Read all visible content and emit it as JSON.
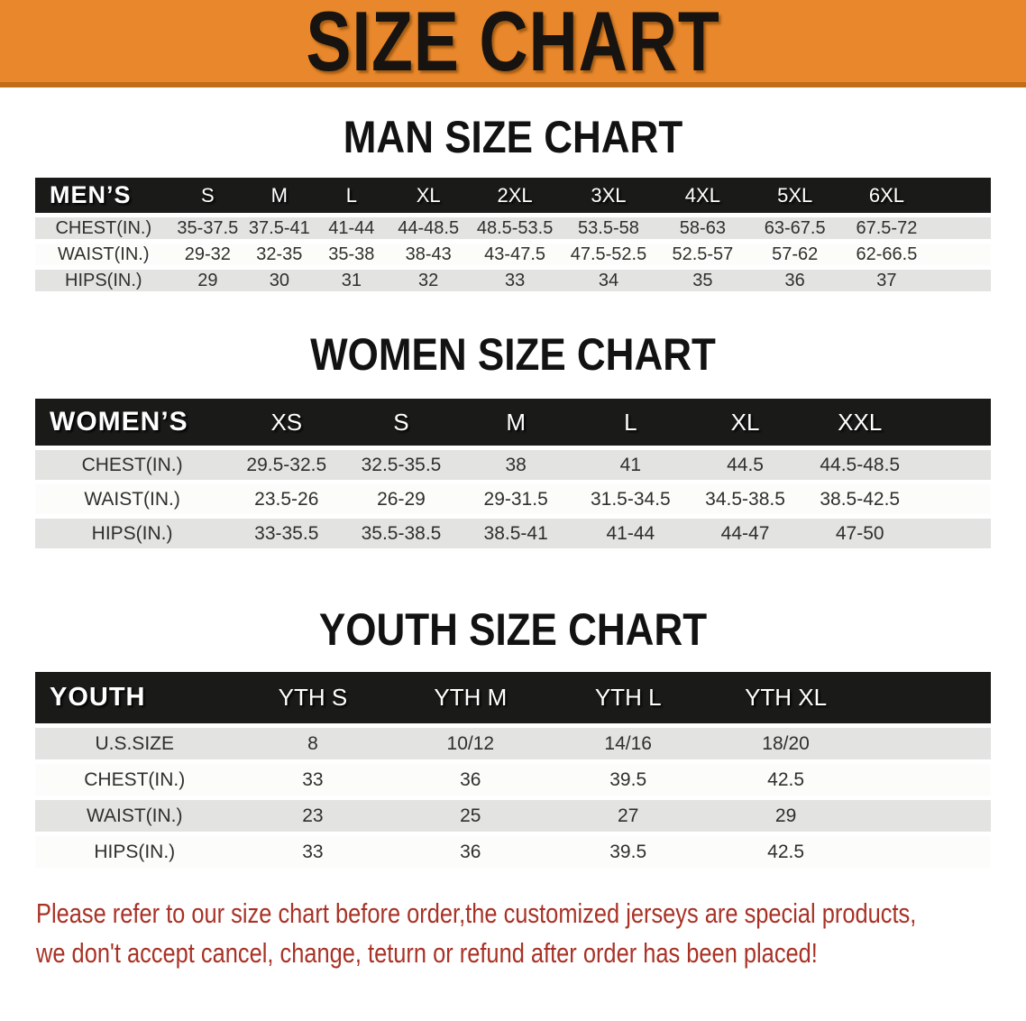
{
  "banner": {
    "title": "SIZE CHART"
  },
  "sections": [
    {
      "id": "men",
      "heading": "MAN SIZE CHART",
      "table": {
        "header": [
          "MEN’S",
          "S",
          "M",
          "L",
          "XL",
          "2XL",
          "3XL",
          "4XL",
          "5XL",
          "6XL"
        ],
        "rows": [
          {
            "label": "CHEST(IN.)",
            "values": [
              "35-37.5",
              "37.5-41",
              "41-44",
              "44-48.5",
              "48.5-53.5",
              "53.5-58",
              "58-63",
              "63-67.5",
              "67.5-72"
            ]
          },
          {
            "label": "WAIST(IN.)",
            "values": [
              "29-32",
              "32-35",
              "35-38",
              "38-43",
              "43-47.5",
              "47.5-52.5",
              "52.5-57",
              "57-62",
              "62-66.5"
            ]
          },
          {
            "label": "HIPS(IN.)",
            "values": [
              "29",
              "30",
              "31",
              "32",
              "33",
              "34",
              "35",
              "36",
              "37"
            ]
          }
        ]
      }
    },
    {
      "id": "women",
      "heading": "WOMEN SIZE CHART",
      "table": {
        "header": [
          "WOMEN’S",
          "XS",
          "S",
          "M",
          "L",
          "XL",
          "XXL"
        ],
        "rows": [
          {
            "label": "CHEST(IN.)",
            "values": [
              "29.5-32.5",
              "32.5-35.5",
              "38",
              "41",
              "44.5",
              "44.5-48.5"
            ]
          },
          {
            "label": "WAIST(IN.)",
            "values": [
              "23.5-26",
              "26-29",
              "29-31.5",
              "31.5-34.5",
              "34.5-38.5",
              "38.5-42.5"
            ]
          },
          {
            "label": "HIPS(IN.)",
            "values": [
              "33-35.5",
              "35.5-38.5",
              "38.5-41",
              "41-44",
              "44-47",
              "47-50"
            ]
          }
        ]
      }
    },
    {
      "id": "youth",
      "heading": "YOUTH SIZE CHART",
      "table": {
        "header": [
          "YOUTH",
          "YTH S",
          "YTH M",
          "YTH L",
          "YTH XL"
        ],
        "rows": [
          {
            "label": "U.S.SIZE",
            "values": [
              "8",
              "10/12",
              "14/16",
              "18/20"
            ]
          },
          {
            "label": "CHEST(IN.)",
            "values": [
              "33",
              "36",
              "39.5",
              "42.5"
            ]
          },
          {
            "label": "WAIST(IN.)",
            "values": [
              "23",
              "25",
              "27",
              "29"
            ]
          },
          {
            "label": "HIPS(IN.)",
            "values": [
              "33",
              "36",
              "39.5",
              "42.5"
            ]
          }
        ]
      }
    }
  ],
  "disclaimer": {
    "line1": "Please refer to our size chart before order,the customized jerseys are special products,",
    "line2": "we don't accept cancel, change, teturn or refund after order has been placed!"
  },
  "colors": {
    "banner_bg": "#E8872B",
    "banner_edge": "#C06D16",
    "header_bar": "#1A1A18",
    "row_alt_gray": "#E3E3E2",
    "disclaimer_red": "#A93226"
  }
}
